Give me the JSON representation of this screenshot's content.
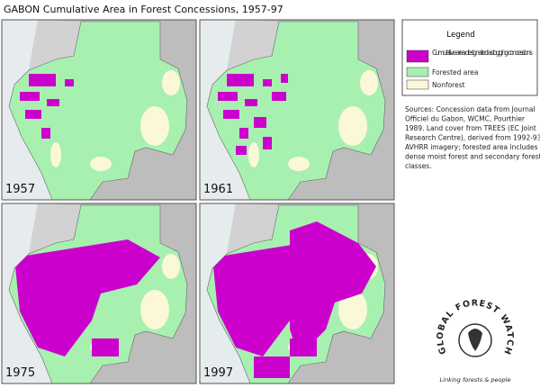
{
  "title": "GABON  Cumulative Area in Forest Concessions, 1957-97",
  "maps": [
    {
      "label": "1957"
    },
    {
      "label": "1961"
    },
    {
      "label": "1975"
    },
    {
      "label": "1997"
    }
  ],
  "legend": {
    "title": "Legend",
    "items": [
      {
        "label": "Cumulative area designated as logging concessions"
      },
      {
        "label": "Forested area"
      },
      {
        "label": "Nonforest"
      }
    ]
  },
  "sources": [
    "Sources:  Concession data from Journal",
    "Officiel du Gabon, WCMC, Pourthier",
    "1989.  Land cover from TREES (EC Joint",
    "Research Centre), derived from 1992-93",
    "AVHRR imagery; forested area includes",
    "dense moist forest and secondary forest",
    "classes."
  ],
  "logo": {
    "name": "GLOBAL FOREST WATCH",
    "tagline": "Linking forests & people"
  }
}
